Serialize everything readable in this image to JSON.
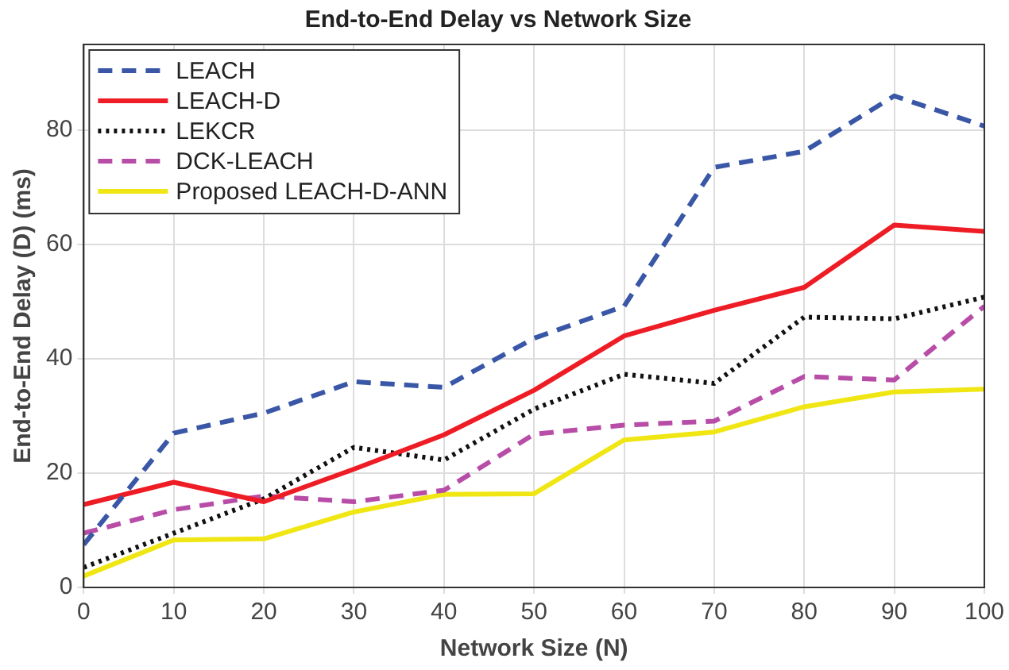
{
  "chart_data": {
    "type": "line",
    "title": "End-to-End Delay vs Network Size",
    "xlabel": "Network Size (N)",
    "ylabel": "End-to-End Delay (D) (ms)",
    "x": [
      0,
      10,
      20,
      30,
      40,
      50,
      60,
      70,
      80,
      90,
      100
    ],
    "xlim": [
      0,
      100
    ],
    "xticks": [
      0,
      10,
      20,
      30,
      40,
      50,
      60,
      70,
      80,
      90,
      100
    ],
    "ylim": [
      0,
      95
    ],
    "yticks": [
      0,
      20,
      40,
      60,
      80
    ],
    "grid": true,
    "legend": "top left",
    "marker": "none",
    "series": [
      {
        "name": "LEACH",
        "color": "#3a57a7",
        "line_style": "dashed",
        "values": [
          7.5,
          27,
          30.5,
          36,
          35,
          43.6,
          49.2,
          73.5,
          76.3,
          86,
          80.7
        ]
      },
      {
        "name": "LEACH-D",
        "color": "#ee1c25",
        "line_style": "solid",
        "values": [
          14.5,
          18.4,
          15,
          20.7,
          26.7,
          34.5,
          44,
          48.5,
          52.5,
          63.4,
          62.3
        ]
      },
      {
        "name": "LEKCR",
        "color": "#111111",
        "line_style": "dotted",
        "values": [
          3.5,
          9.5,
          15.5,
          24.5,
          22.3,
          31.2,
          37.3,
          35.7,
          47.3,
          47,
          50.8
        ]
      },
      {
        "name": "DCK-LEACH",
        "color": "#b84da8",
        "line_style": "dashed",
        "values": [
          9.5,
          13.6,
          16,
          15,
          17,
          26.8,
          28.4,
          29.1,
          36.9,
          36.3,
          49.2
        ]
      },
      {
        "name": "Proposed LEACH-D-ANN",
        "color": "#f0e614",
        "line_style": "solid",
        "values": [
          2,
          8.3,
          8.5,
          13.2,
          16.3,
          16.4,
          25.8,
          27.2,
          31.6,
          34.2,
          34.7
        ]
      }
    ]
  }
}
